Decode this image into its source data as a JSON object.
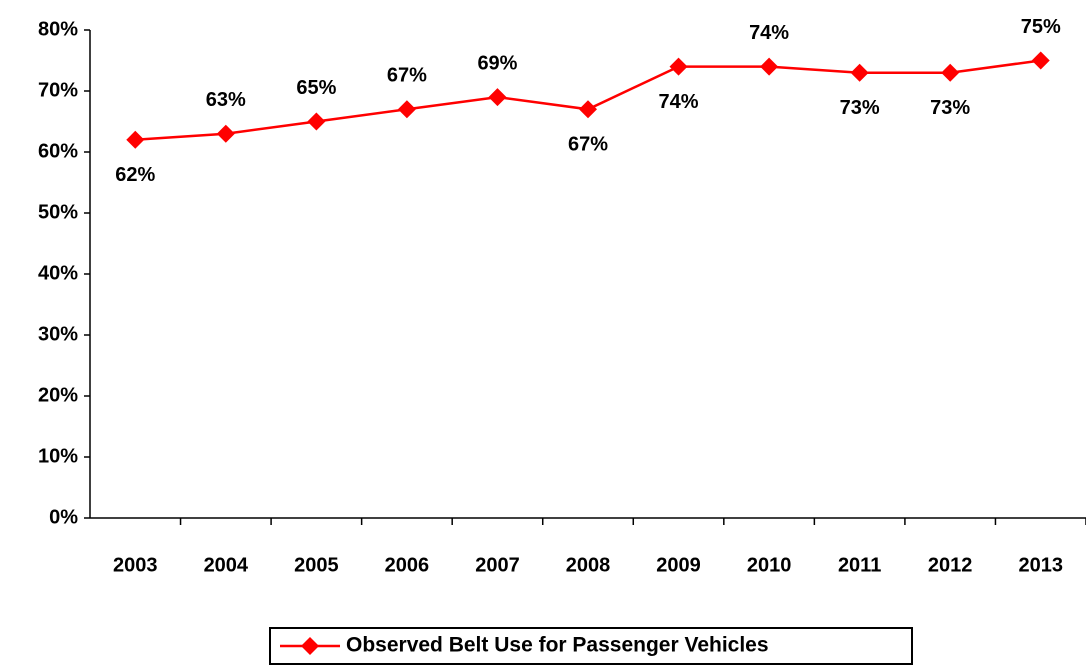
{
  "chart_data": {
    "type": "line",
    "categories": [
      "2003",
      "2004",
      "2005",
      "2006",
      "2007",
      "2008",
      "2009",
      "2010",
      "2011",
      "2012",
      "2013"
    ],
    "series": [
      {
        "name": "Observed Belt Use for Passenger Vehicles",
        "color": "#ff0000",
        "values": [
          62,
          63,
          65,
          67,
          69,
          67,
          74,
          74,
          73,
          73,
          75
        ],
        "value_labels": [
          "62%",
          "63%",
          "65%",
          "67%",
          "69%",
          "67%",
          "74%",
          "74%",
          "73%",
          "73%",
          "75%"
        ]
      }
    ],
    "ylim": [
      0,
      80
    ],
    "yticks": [
      {
        "value": 0,
        "label": "0%"
      },
      {
        "value": 10,
        "label": "10%"
      },
      {
        "value": 20,
        "label": "20%"
      },
      {
        "value": 30,
        "label": "30%"
      },
      {
        "value": 40,
        "label": "40%"
      },
      {
        "value": 50,
        "label": "50%"
      },
      {
        "value": 60,
        "label": "60%"
      },
      {
        "value": 70,
        "label": "70%"
      },
      {
        "value": 80,
        "label": "80%"
      }
    ],
    "grid": false,
    "legend": "bottom"
  }
}
